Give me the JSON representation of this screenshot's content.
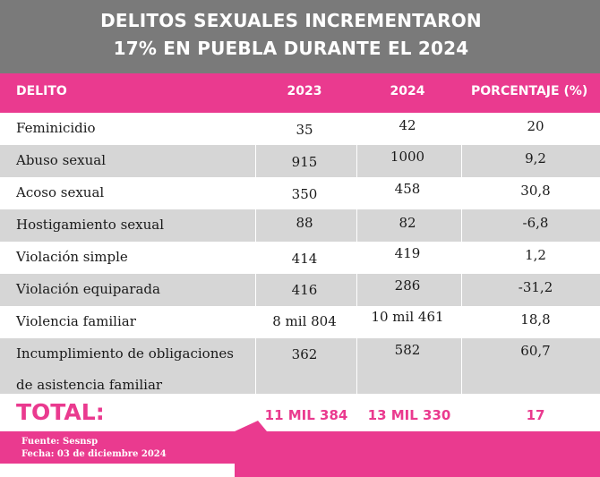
{
  "title": {
    "line1": "DELITOS SEXUALES INCREMENTARON",
    "line2": "17% EN PUEBLA DURANTE EL 2024"
  },
  "table": {
    "headers": [
      "DELITO",
      "2023",
      "2024",
      "PORCENTAJE (%)"
    ],
    "rows": [
      {
        "delito": "Feminicidio",
        "y2023": "35",
        "y2024": "42",
        "pct": "20"
      },
      {
        "delito": "Abuso sexual",
        "y2023": "915",
        "y2024": "1000",
        "pct": "9,2"
      },
      {
        "delito": "Acoso sexual",
        "y2023": "350",
        "y2024": "458",
        "pct": "30,8"
      },
      {
        "delito": "Hostigamiento sexual",
        "y2023": "88",
        "y2024": "82",
        "pct": "-6,8"
      },
      {
        "delito": "Violación simple",
        "y2023": "414",
        "y2024": "419",
        "pct": "1,2"
      },
      {
        "delito": "Violación equiparada",
        "y2023": "416",
        "y2024": "286",
        "pct": "-31,2"
      },
      {
        "delito": "Violencia familiar",
        "y2023": "8 mil 804",
        "y2024": "10 mil 461",
        "pct": "18,8"
      },
      {
        "delito_line1": "Incumplimiento de obligaciones",
        "delito_line2": "de asistencia familiar",
        "y2023": "362",
        "y2024": "582",
        "pct": "60,7"
      }
    ],
    "total": {
      "label": "TOTAL:",
      "y2023": "11 MIL 384",
      "y2024": "13 MIL 330",
      "pct": "17"
    }
  },
  "footer": {
    "source": "Fuente: Sesnsp",
    "date": "Fecha: 03 de diciembre 2024"
  },
  "colors": {
    "accent": "#ea3a8f",
    "title_band": "#7a7a7a",
    "row_gray": "#d6d6d6"
  }
}
